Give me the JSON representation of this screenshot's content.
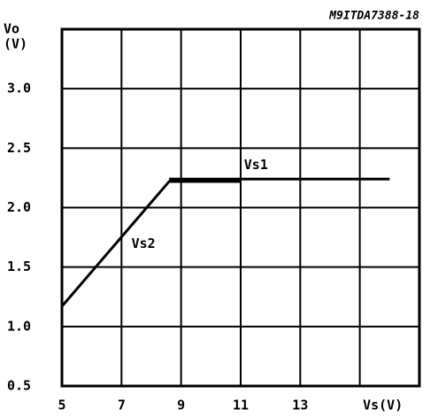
{
  "chart_data": {
    "type": "line",
    "title": "M9ITDA7388-18",
    "ylabel": [
      "Vo",
      "(V)"
    ],
    "xlim": [
      5,
      17
    ],
    "xticks": [
      5,
      7,
      9,
      11,
      13,
      {
        "value": 15,
        "label": "Vs(V)"
      }
    ],
    "ylim": [
      0.5,
      3.5
    ],
    "yticks": [
      0.5,
      {
        "value": 1,
        "label": "1.0"
      },
      1.5,
      {
        "value": 2,
        "label": "2.0"
      },
      2.5,
      {
        "value": 3,
        "label": "3.0"
      }
    ],
    "grid": true,
    "series": [
      {
        "name": "Vs1",
        "color": "#000000",
        "x": [
          8.6,
          16
        ],
        "values": [
          2.24,
          2.24
        ]
      },
      {
        "name": "Vs2",
        "color": "#000000",
        "x": [
          5,
          8.6,
          11
        ],
        "values": [
          1.17,
          2.22,
          2.22
        ]
      }
    ]
  }
}
